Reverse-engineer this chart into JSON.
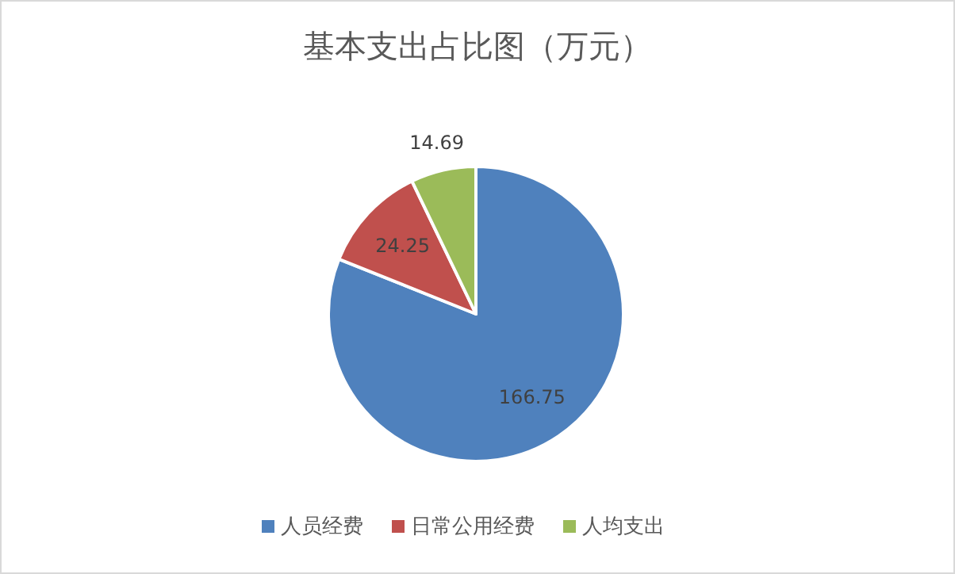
{
  "chart_data": {
    "type": "pie",
    "title": "基本支出占比图（万元）",
    "categories": [
      "人员经费",
      "日常公用经费",
      "人均支出"
    ],
    "values": [
      166.75,
      24.25,
      14.69
    ],
    "colors": [
      "#4f81bd",
      "#c0504d",
      "#9bbb59"
    ],
    "data_labels": true,
    "legend": "bottom"
  }
}
